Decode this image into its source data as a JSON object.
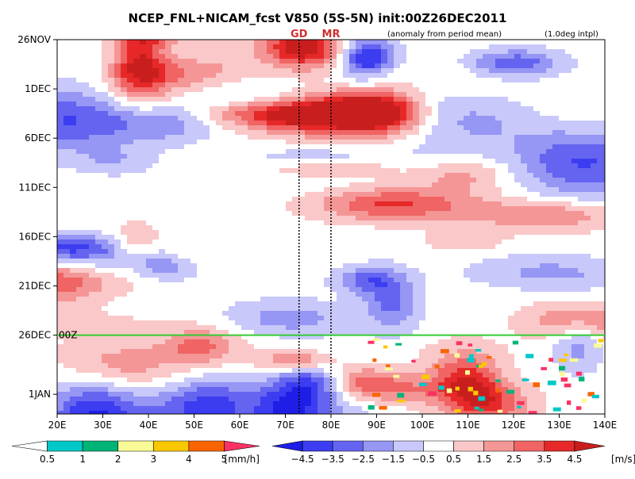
{
  "chart_data": {
    "type": "heatmap",
    "title": "NCEP_FNL+NICAM_fcst V850 (5S-5N) init:00Z26DEC2011",
    "subtitle_left": "(anomaly from period mean)",
    "subtitle_right": "(1.0deg intpl)",
    "x_axis": {
      "unit": "longitude",
      "range": [
        20,
        140
      ],
      "ticks": [
        "20E",
        "30E",
        "40E",
        "50E",
        "60E",
        "70E",
        "80E",
        "90E",
        "100E",
        "110E",
        "120E",
        "130E",
        "140E"
      ]
    },
    "y_axis": {
      "unit": "date",
      "range": [
        "2011-11-26",
        "2012-01-03"
      ],
      "ticks": [
        "26NOV",
        "1DEC",
        "6DEC",
        "11DEC",
        "16DEC",
        "21DEC",
        "26DEC",
        "1JAN"
      ],
      "inverted": true
    },
    "init_line": {
      "date": "26DEC",
      "label": "00Z",
      "color": "#33cc33"
    },
    "markers": [
      {
        "label": "GD",
        "lon": 73
      },
      {
        "label": "MR",
        "lon": 80
      }
    ],
    "precip_colorbar": {
      "unit": "[mm/h]",
      "labels": [
        "0.5",
        "1",
        "2",
        "3",
        "4",
        "5"
      ],
      "colors": [
        "#ffffff",
        "#00c8c8",
        "#00b478",
        "#fafa96",
        "#fac800",
        "#fa6400",
        "#fa3264"
      ]
    },
    "wind_colorbar": {
      "unit": "[m/s]",
      "labels": [
        "-4.5",
        "-3.5",
        "-2.5",
        "-1.5",
        "-0.5",
        "0.5",
        "1.5",
        "2.5",
        "3.5",
        "4.5"
      ],
      "colors": [
        "#1e1ee6",
        "#3c3cf0",
        "#6464f0",
        "#9696f5",
        "#c8c8fa",
        "#ffffff",
        "#fac8c8",
        "#f59696",
        "#f06464",
        "#e62828",
        "#c81e1e"
      ]
    }
  }
}
